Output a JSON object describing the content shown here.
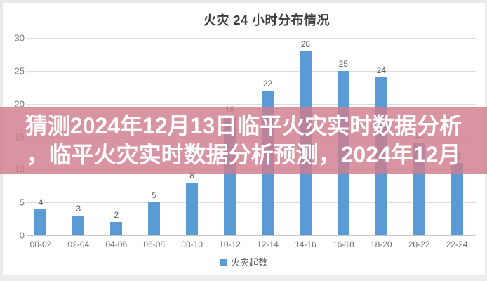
{
  "chart_data": {
    "type": "bar",
    "title": "火灾 24 小时分布情况",
    "categories": [
      "00-02",
      "02-04",
      "04-06",
      "06-08",
      "08-10",
      "10-12",
      "12-14",
      "14-16",
      "16-18",
      "18-20",
      "20-22",
      "22-24"
    ],
    "values": [
      4,
      3,
      2,
      5,
      8,
      18,
      22,
      28,
      25,
      24,
      14,
      11
    ],
    "series_name": "火灾起数",
    "xlabel": "",
    "ylabel": "",
    "ylim": [
      0,
      30
    ],
    "y_ticks": [
      0,
      5,
      10,
      15,
      20,
      25,
      30
    ],
    "grid": true,
    "data_labels": true,
    "legend_position": "bottom",
    "bar_color": "#5B9BD5",
    "gridline_color": "#DCDCDC"
  },
  "overlay": {
    "line1": "猜测2024年12月13日临平火灾实时数据分析",
    "line2": "，临平火灾实时数据分析预测，2024年12月",
    "bg_color": "#D17C8D",
    "text_color": "#FFFFFF"
  }
}
